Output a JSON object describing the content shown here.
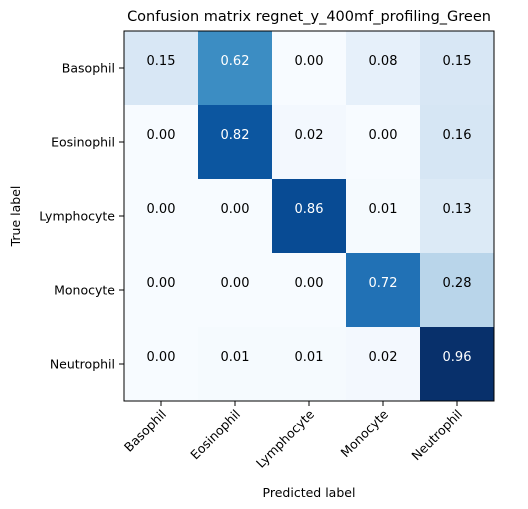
{
  "chart_data": {
    "type": "heatmap",
    "title": "Confusion matrix regnet_y_400mf_profiling_Green",
    "xlabel": "Predicted label",
    "ylabel": "True label",
    "x_categories": [
      "Basophil",
      "Eosinophil",
      "Lymphocyte",
      "Monocyte",
      "Neutrophil"
    ],
    "y_categories": [
      "Basophil",
      "Eosinophil",
      "Lymphocyte",
      "Monocyte",
      "Neutrophil"
    ],
    "values": [
      [
        0.15,
        0.62,
        0.0,
        0.08,
        0.15
      ],
      [
        0.0,
        0.82,
        0.02,
        0.0,
        0.16
      ],
      [
        0.0,
        0.0,
        0.86,
        0.01,
        0.13
      ],
      [
        0.0,
        0.0,
        0.0,
        0.72,
        0.28
      ],
      [
        0.0,
        0.01,
        0.01,
        0.02,
        0.96
      ]
    ],
    "value_labels": [
      [
        "0.15",
        "0.62",
        "0.00",
        "0.08",
        "0.15"
      ],
      [
        "0.00",
        "0.82",
        "0.02",
        "0.00",
        "0.16"
      ],
      [
        "0.00",
        "0.00",
        "0.86",
        "0.01",
        "0.13"
      ],
      [
        "0.00",
        "0.00",
        "0.00",
        "0.72",
        "0.28"
      ],
      [
        "0.00",
        "0.01",
        "0.01",
        "0.02",
        "0.96"
      ]
    ],
    "colormap": "Blues",
    "vrange": [
      0,
      0.96
    ],
    "grid": false,
    "text_color_dark": "#000000",
    "text_color_light": "#ffffff"
  }
}
